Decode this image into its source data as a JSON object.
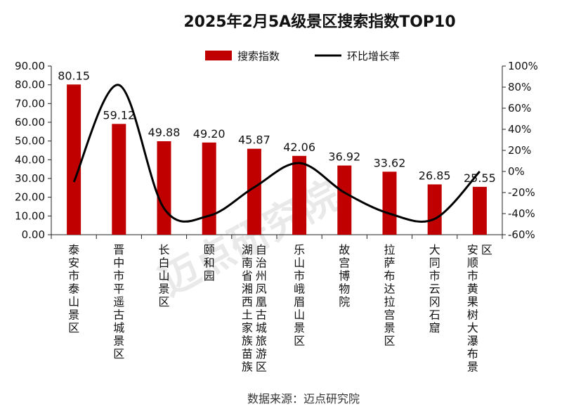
{
  "chart_data": {
    "type": "bar",
    "title": "2025年2月5A级景区搜索指数TOP10",
    "categories": [
      "泰安市泰山景区",
      "晋中市平遥古城景区",
      "长白山景区",
      "颐和园",
      "湖南省湘西土家族苗族自治州凤凰古城旅游区",
      "乐山市峨眉山景区",
      "故宫博物院",
      "拉萨布达拉宫景区",
      "大同市云冈石窟",
      "安顺市黄果树大瀑布景区"
    ],
    "series": [
      {
        "name": "搜索指数",
        "type": "bar",
        "axis": "left",
        "color": "#c00000",
        "values": [
          80.15,
          59.12,
          49.88,
          49.2,
          45.87,
          42.06,
          36.92,
          33.62,
          26.85,
          25.55
        ]
      },
      {
        "name": "环比增长率",
        "type": "line",
        "axis": "right",
        "color": "#000000",
        "unit": "%",
        "values": [
          -10,
          82,
          -35,
          -42,
          -15,
          8,
          -20,
          -40,
          -45,
          0
        ]
      }
    ],
    "data_labels": [
      "80.15",
      "59.12",
      "49.88",
      "49.20",
      "45.87",
      "42.06",
      "36.92",
      "33.62",
      "26.85",
      "25.55"
    ],
    "yleft": {
      "min": 0,
      "max": 90,
      "step": 10,
      "ticks": [
        "0.00",
        "10.00",
        "20.00",
        "30.00",
        "40.00",
        "50.00",
        "60.00",
        "70.00",
        "80.00",
        "90.00"
      ]
    },
    "yright": {
      "min": -60,
      "max": 100,
      "step": 20,
      "ticks": [
        "-60%",
        "-40%",
        "-20%",
        "0%",
        "20%",
        "40%",
        "60%",
        "80%",
        "100%"
      ]
    },
    "grid": false,
    "legend_position": "top-center",
    "source": "数据来源：迈点研究院",
    "watermark": "迈点研究院"
  }
}
